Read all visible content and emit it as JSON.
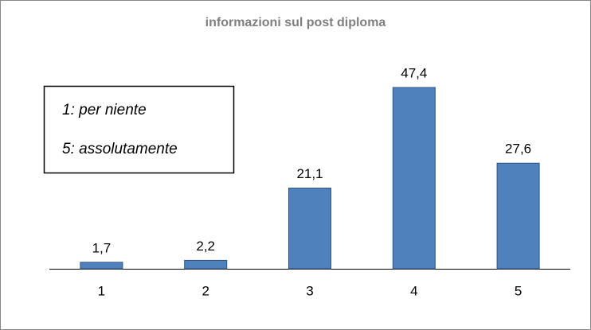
{
  "chart_data": {
    "type": "bar",
    "title": "informazioni sul post diploma",
    "categories": [
      "1",
      "2",
      "3",
      "4",
      "5"
    ],
    "values": [
      1.7,
      2.2,
      21.1,
      47.4,
      27.6
    ],
    "value_labels": [
      "1,7",
      "2,2",
      "21,1",
      "47,4",
      "27,6"
    ],
    "color": "#4f81bd",
    "annotations": [
      "1: per niente",
      "5: assolutamente"
    ]
  }
}
